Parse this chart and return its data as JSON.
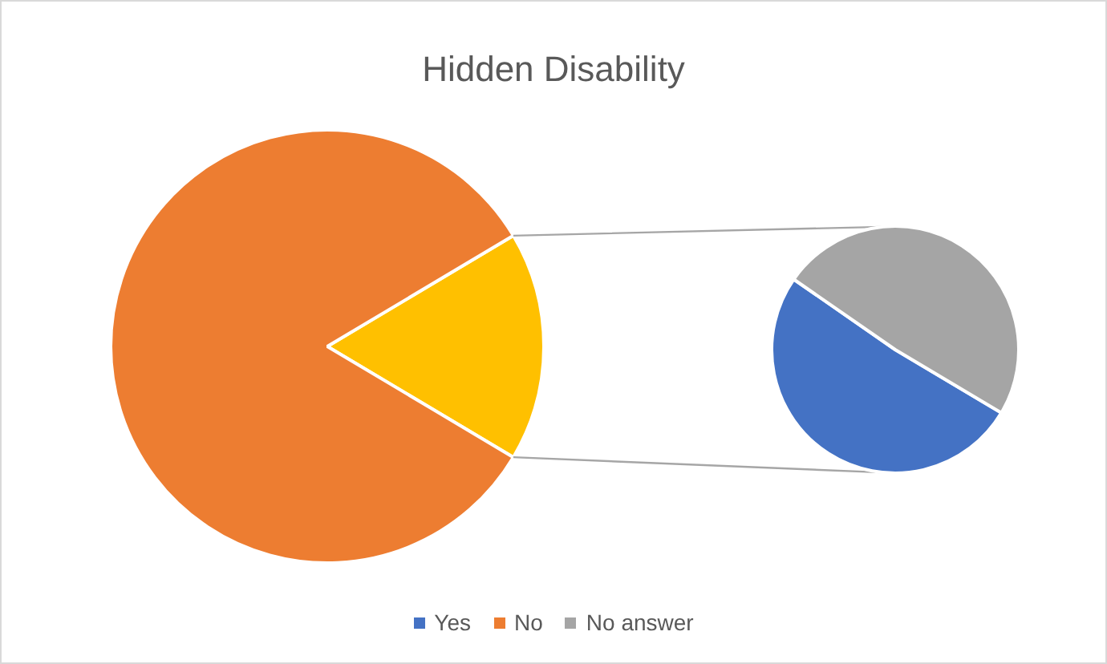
{
  "chart_data": [
    {
      "type": "pie",
      "title": "Hidden Disability",
      "categories": [
        null,
        "No"
      ],
      "values": [
        17.1,
        82.9
      ],
      "colors": [
        "#ffc000",
        "#ed7d31"
      ],
      "legend": "bottom"
    },
    {
      "type": "pie",
      "categories": [
        "Yes",
        "No answer"
      ],
      "values": [
        51.1,
        48.9
      ],
      "colors": [
        "#4472c4",
        "#a5a5a5"
      ],
      "legend": "bottom"
    }
  ]
}
